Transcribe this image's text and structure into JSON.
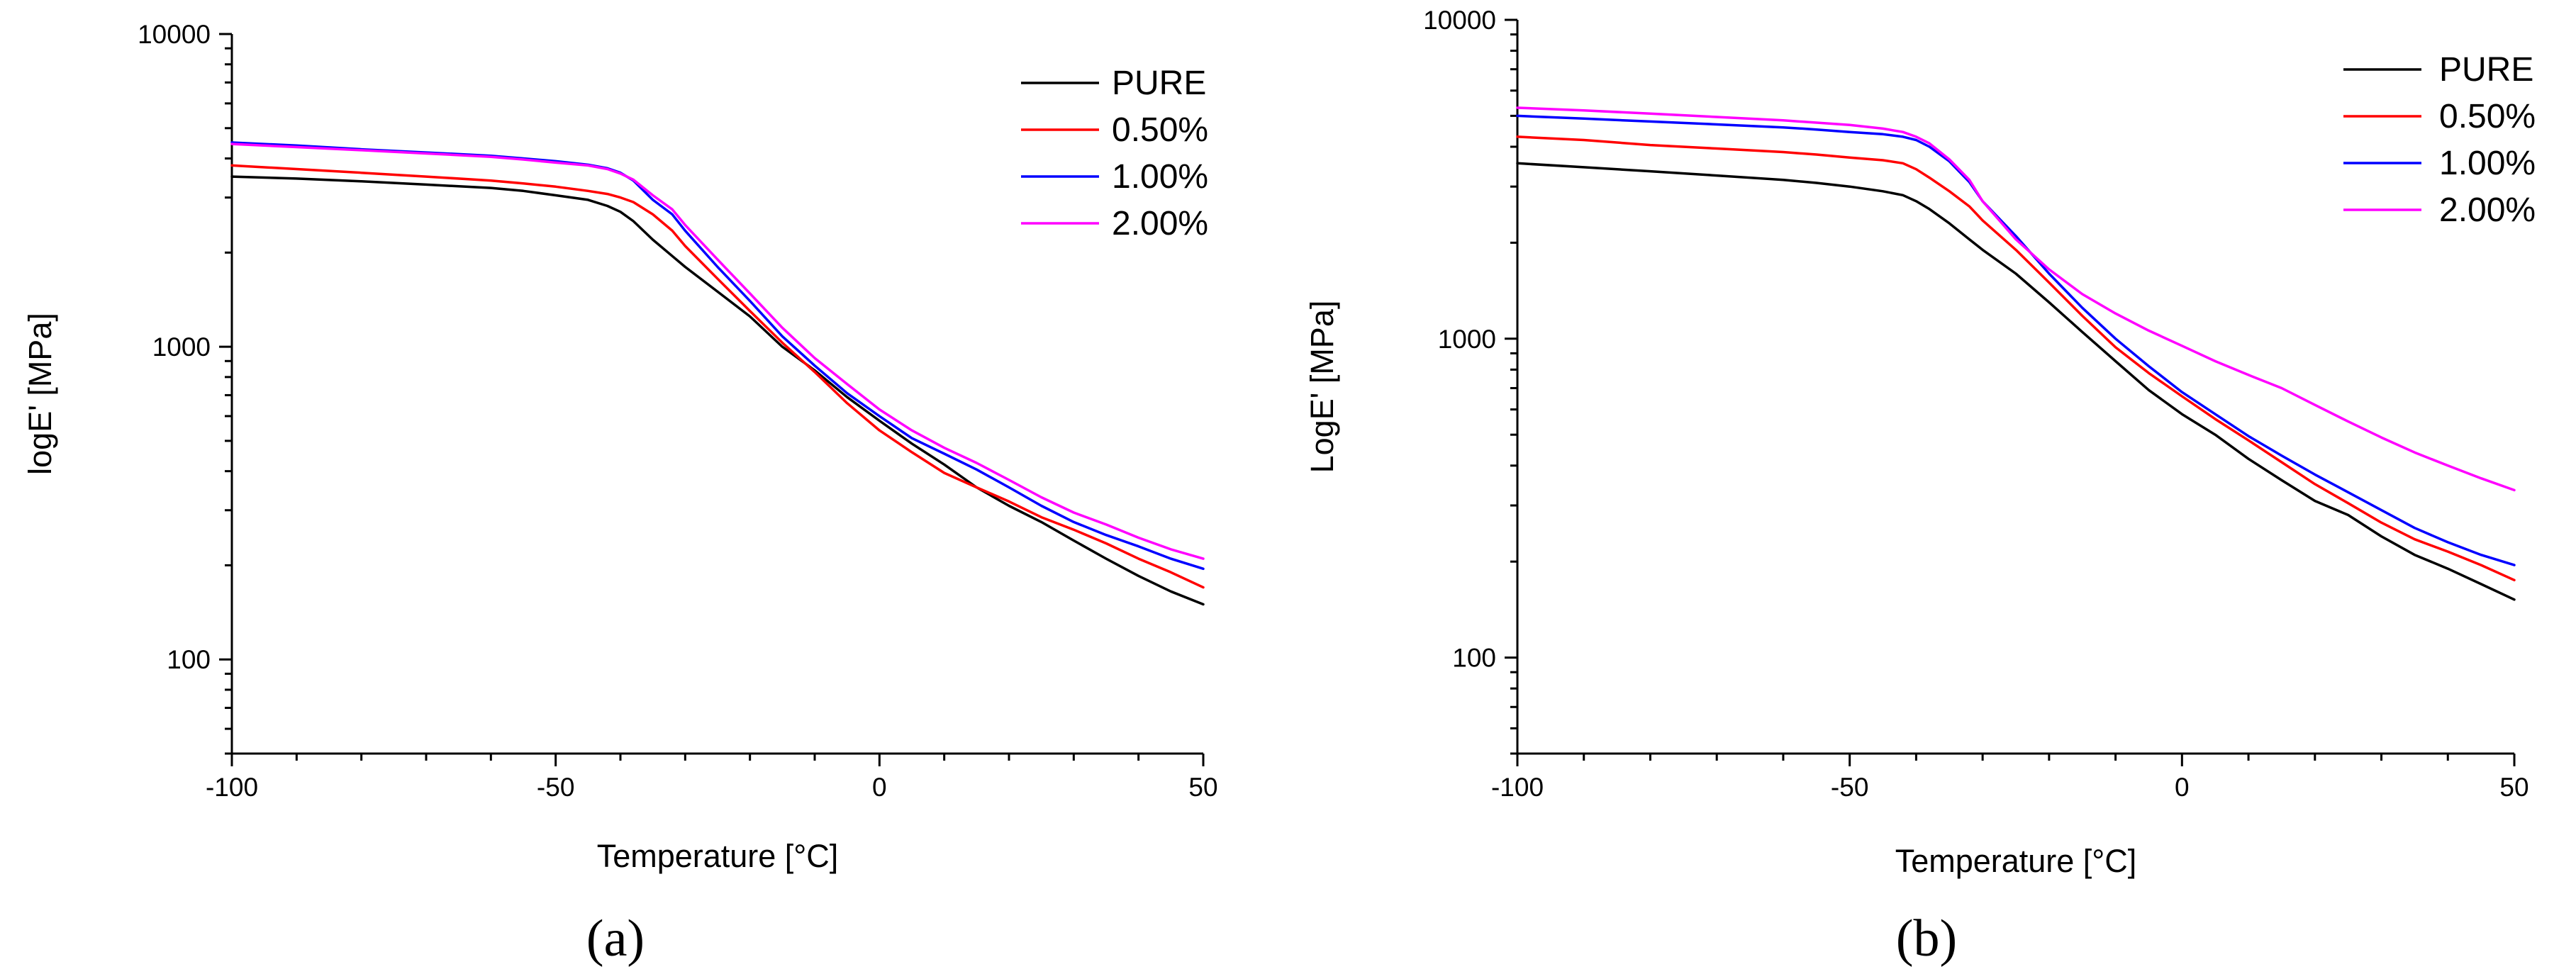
{
  "chart_data": [
    {
      "type": "line",
      "panel": "(a)",
      "caption": "(a)",
      "xlabel": "Temperature [°C]",
      "ylabel": "logE' [MPa]",
      "xlim": [
        -100,
        50
      ],
      "ylim": [
        50,
        10000
      ],
      "yscale": "log",
      "grid": false,
      "legend_position": "top-right",
      "x_ticks": [
        -100,
        -50,
        0,
        50
      ],
      "x_tick_labels": [
        "-100",
        "-50",
        "0",
        "50"
      ],
      "y_ticks": [
        100,
        1000,
        10000
      ],
      "y_tick_labels": [
        "100",
        "1000",
        "10000"
      ],
      "series": [
        {
          "name": "PURE",
          "color": "#000000",
          "x": [
            -100,
            -90,
            -80,
            -70,
            -60,
            -55,
            -50,
            -45,
            -42,
            -40,
            -38,
            -35,
            -32,
            -30,
            -25,
            -20,
            -15,
            -10,
            -5,
            0,
            5,
            10,
            15,
            20,
            25,
            30,
            35,
            40,
            45,
            50
          ],
          "y": [
            3500,
            3450,
            3380,
            3300,
            3220,
            3150,
            3050,
            2950,
            2820,
            2700,
            2520,
            2200,
            1950,
            1800,
            1500,
            1250,
            1000,
            840,
            690,
            580,
            490,
            420,
            355,
            310,
            275,
            240,
            210,
            185,
            165,
            150
          ]
        },
        {
          "name": "0.50%",
          "color": "#ff0000",
          "x": [
            -100,
            -90,
            -80,
            -70,
            -60,
            -55,
            -50,
            -45,
            -42,
            -40,
            -38,
            -35,
            -32,
            -30,
            -25,
            -20,
            -15,
            -10,
            -5,
            0,
            5,
            10,
            15,
            20,
            25,
            30,
            35,
            40,
            45,
            50
          ],
          "y": [
            3800,
            3700,
            3600,
            3500,
            3400,
            3330,
            3250,
            3150,
            3080,
            3000,
            2900,
            2650,
            2350,
            2100,
            1650,
            1300,
            1030,
            830,
            660,
            540,
            460,
            395,
            355,
            320,
            285,
            260,
            235,
            210,
            190,
            170
          ]
        },
        {
          "name": "1.00%",
          "color": "#0000ff",
          "x": [
            -100,
            -90,
            -80,
            -70,
            -60,
            -55,
            -50,
            -45,
            -42,
            -40,
            -38,
            -35,
            -32,
            -30,
            -25,
            -20,
            -15,
            -10,
            -5,
            0,
            5,
            10,
            15,
            20,
            25,
            30,
            35,
            40,
            45,
            50
          ],
          "y": [
            4500,
            4400,
            4280,
            4180,
            4080,
            4000,
            3920,
            3820,
            3720,
            3600,
            3400,
            2950,
            2650,
            2350,
            1800,
            1400,
            1080,
            870,
            710,
            600,
            510,
            455,
            405,
            355,
            310,
            275,
            250,
            230,
            210,
            195
          ]
        },
        {
          "name": "2.00%",
          "color": "#ff00ff",
          "x": [
            -100,
            -90,
            -80,
            -70,
            -60,
            -55,
            -50,
            -45,
            -42,
            -40,
            -38,
            -35,
            -32,
            -30,
            -25,
            -20,
            -15,
            -10,
            -5,
            0,
            5,
            10,
            15,
            20,
            25,
            30,
            35,
            40,
            45,
            50
          ],
          "y": [
            4450,
            4350,
            4250,
            4150,
            4050,
            3970,
            3880,
            3800,
            3700,
            3580,
            3420,
            3050,
            2750,
            2450,
            1900,
            1480,
            1150,
            920,
            760,
            630,
            540,
            475,
            425,
            375,
            330,
            295,
            270,
            245,
            225,
            210
          ]
        }
      ]
    },
    {
      "type": "line",
      "panel": "(b)",
      "caption": "(b)",
      "xlabel": "Temperature [°C]",
      "ylabel": "LogE' [MPa]",
      "xlim": [
        -100,
        50
      ],
      "ylim": [
        50,
        10000
      ],
      "yscale": "log",
      "grid": false,
      "legend_position": "top-right",
      "x_ticks": [
        -100,
        -50,
        0,
        50
      ],
      "x_tick_labels": [
        "-100",
        "-50",
        "0",
        "50"
      ],
      "y_ticks": [
        100,
        1000,
        10000
      ],
      "y_tick_labels": [
        "100",
        "1000",
        "10000"
      ],
      "series": [
        {
          "name": "PURE",
          "color": "#000000",
          "x": [
            -100,
            -90,
            -80,
            -70,
            -60,
            -55,
            -50,
            -45,
            -42,
            -40,
            -38,
            -35,
            -32,
            -30,
            -25,
            -20,
            -15,
            -10,
            -5,
            0,
            5,
            10,
            15,
            20,
            25,
            30,
            35,
            40,
            45,
            50
          ],
          "y": [
            3550,
            3450,
            3350,
            3250,
            3150,
            3080,
            3000,
            2900,
            2820,
            2700,
            2550,
            2300,
            2050,
            1900,
            1600,
            1300,
            1050,
            850,
            690,
            580,
            500,
            420,
            360,
            310,
            280,
            240,
            210,
            190,
            170,
            152
          ]
        },
        {
          "name": "0.50%",
          "color": "#ff0000",
          "x": [
            -100,
            -90,
            -80,
            -70,
            -60,
            -55,
            -50,
            -45,
            -42,
            -40,
            -38,
            -35,
            -32,
            -30,
            -25,
            -20,
            -15,
            -10,
            -5,
            0,
            5,
            10,
            15,
            20,
            25,
            30,
            35,
            40,
            45,
            50
          ],
          "y": [
            4300,
            4200,
            4050,
            3950,
            3850,
            3780,
            3700,
            3630,
            3550,
            3400,
            3200,
            2900,
            2600,
            2350,
            1900,
            1500,
            1180,
            940,
            780,
            660,
            560,
            480,
            410,
            350,
            305,
            265,
            235,
            215,
            195,
            175
          ]
        },
        {
          "name": "1.00%",
          "color": "#0000ff",
          "x": [
            -100,
            -90,
            -80,
            -70,
            -60,
            -55,
            -50,
            -45,
            -42,
            -40,
            -38,
            -35,
            -32,
            -30,
            -25,
            -20,
            -15,
            -10,
            -5,
            0,
            5,
            10,
            15,
            20,
            25,
            30,
            35,
            40,
            45,
            50
          ],
          "y": [
            5000,
            4900,
            4800,
            4700,
            4600,
            4530,
            4450,
            4380,
            4300,
            4200,
            4000,
            3600,
            3100,
            2700,
            2100,
            1600,
            1250,
            1000,
            820,
            680,
            580,
            495,
            430,
            375,
            330,
            290,
            255,
            230,
            210,
            195
          ]
        },
        {
          "name": "2.00%",
          "color": "#ff00ff",
          "x": [
            -100,
            -90,
            -80,
            -70,
            -60,
            -55,
            -50,
            -45,
            -42,
            -40,
            -38,
            -35,
            -32,
            -30,
            -25,
            -20,
            -15,
            -10,
            -5,
            0,
            5,
            10,
            15,
            20,
            25,
            30,
            35,
            40,
            45,
            50
          ],
          "y": [
            5300,
            5200,
            5080,
            4960,
            4840,
            4760,
            4680,
            4560,
            4450,
            4300,
            4100,
            3650,
            3150,
            2700,
            2050,
            1650,
            1380,
            1200,
            1060,
            950,
            850,
            770,
            700,
            620,
            550,
            490,
            440,
            400,
            365,
            335
          ]
        }
      ]
    }
  ]
}
